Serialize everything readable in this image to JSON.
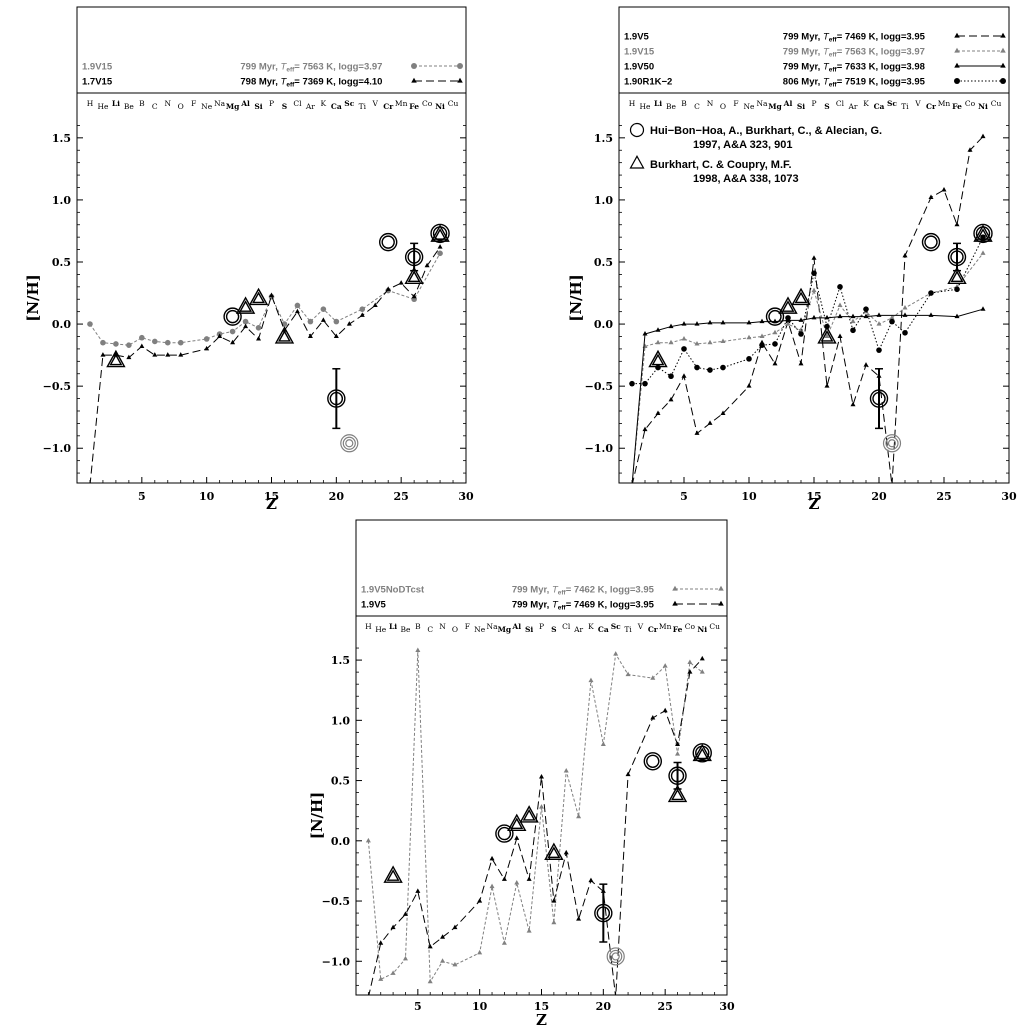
{
  "chart_data": [
    {
      "type": "line",
      "xlabel": "Z",
      "ylabel": "[N/H]",
      "xlim": [
        0,
        30
      ],
      "ylim": [
        -1.28,
        1.7
      ],
      "xticks": [
        5,
        10,
        15,
        20,
        25,
        30
      ],
      "yticks": [
        -1.0,
        -0.5,
        0.0,
        0.5,
        1.0,
        1.5
      ],
      "ytick_labels": [
        "−1.0",
        "−0.5",
        "0.0",
        "0.5",
        "1.0",
        "1.5"
      ],
      "legend": [
        {
          "name": "1.9V15",
          "desc_pre": "799 Myr, ",
          "teff_sym": "T",
          "teff_sub": "eff",
          "desc_post": "= 7563 K, logg=3.97",
          "color": "#808080",
          "style": "dotted-circle"
        },
        {
          "name": "1.7V15",
          "desc_pre": "798 Myr, ",
          "teff_sym": "T",
          "teff_sub": "eff",
          "desc_post": "= 7369 K, logg=4.10",
          "color": "#000000",
          "style": "dashed-triangle"
        }
      ],
      "series": [
        {
          "name": "1.9V15",
          "color": "#808080",
          "marker": "circle",
          "dash": "3,2",
          "x": [
            1,
            2,
            3,
            4,
            5,
            6,
            7,
            8,
            10,
            11,
            12,
            13,
            14,
            15,
            16,
            17,
            18,
            19,
            20,
            22,
            24,
            26,
            28
          ],
          "y": [
            0.0,
            -0.15,
            -0.16,
            -0.17,
            -0.11,
            -0.14,
            -0.15,
            -0.15,
            -0.12,
            -0.08,
            -0.06,
            0.02,
            -0.03,
            0.22,
            0.0,
            0.15,
            0.02,
            0.12,
            0.02,
            0.12,
            0.27,
            0.2,
            0.57
          ]
        },
        {
          "name": "1.7V15",
          "color": "#000000",
          "marker": "triangle",
          "dash": "8,4",
          "x": [
            1,
            2,
            3,
            4,
            5,
            6,
            7,
            8,
            10,
            11,
            12,
            13,
            14,
            15,
            16,
            17,
            18,
            19,
            20,
            21,
            22,
            23,
            24,
            25,
            26,
            27,
            28
          ],
          "y": [
            -1.3,
            -0.25,
            -0.25,
            -0.27,
            -0.18,
            -0.25,
            -0.25,
            -0.25,
            -0.2,
            -0.1,
            -0.15,
            -0.02,
            -0.12,
            0.23,
            -0.05,
            0.1,
            -0.1,
            0.03,
            -0.1,
            0.0,
            0.07,
            0.15,
            0.28,
            0.33,
            0.22,
            0.47,
            0.62
          ]
        }
      ],
      "references": {
        "circles": [
          {
            "x": 12,
            "y": 0.06
          },
          {
            "x": 24,
            "y": 0.66
          }
        ],
        "circles_err": [
          {
            "x": 20,
            "y": -0.6,
            "err": 0.24
          },
          {
            "x": 26,
            "y": 0.54,
            "err": 0.11
          }
        ],
        "triangles": [
          {
            "x": 3,
            "y": -0.3
          },
          {
            "x": 13,
            "y": 0.13
          },
          {
            "x": 14,
            "y": 0.2
          },
          {
            "x": 16,
            "y": -0.11
          },
          {
            "x": 26,
            "y": 0.37
          },
          {
            "x": 28,
            "y": 0.71
          }
        ],
        "double_circles": [
          {
            "x": 28,
            "y": 0.73
          }
        ],
        "triple_circles": [
          {
            "x": 21,
            "y": -0.96
          }
        ]
      },
      "ref_text": []
    },
    {
      "type": "line",
      "xlabel": "Z",
      "ylabel": "[N/H]",
      "xlim": [
        0,
        30
      ],
      "ylim": [
        -1.28,
        1.7
      ],
      "xticks": [
        5,
        10,
        15,
        20,
        25,
        30
      ],
      "yticks": [
        -1.0,
        -0.5,
        0.0,
        0.5,
        1.0,
        1.5
      ],
      "ytick_labels": [
        "−1.0",
        "−0.5",
        "0.0",
        "0.5",
        "1.0",
        "1.5"
      ],
      "legend": [
        {
          "name": "1.9V5",
          "desc_pre": "799 Myr, ",
          "teff_sym": "T",
          "teff_sub": "eff",
          "desc_post": "= 7469 K, logg=3.95",
          "color": "#000000",
          "style": "dashed-triangle"
        },
        {
          "name": "1.9V15",
          "desc_pre": "799 Myr, ",
          "teff_sym": "T",
          "teff_sub": "eff",
          "desc_post": "= 7563 K, logg=3.97",
          "color": "#808080",
          "style": "dotted-triangle"
        },
        {
          "name": "1.9V50",
          "desc_pre": "799 Myr, ",
          "teff_sym": "T",
          "teff_sub": "eff",
          "desc_post": "= 7633 K, logg=3.98",
          "color": "#000000",
          "style": "solid-triangle"
        },
        {
          "name": "1.90R1K−2",
          "desc_pre": "806 Myr, ",
          "teff_sym": "T",
          "teff_sub": "eff",
          "desc_post": "= 7519 K, logg=3.95",
          "color": "#000000",
          "style": "dotted-circle"
        }
      ],
      "series": [
        {
          "name": "1.9V5",
          "color": "#000000",
          "marker": "triangle",
          "dash": "8,4",
          "x": [
            1,
            2,
            3,
            4,
            5,
            6,
            7,
            8,
            10,
            11,
            12,
            13,
            14,
            15,
            16,
            17,
            18,
            19,
            20,
            21,
            22,
            24,
            25,
            26,
            27,
            28
          ],
          "y": [
            -1.3,
            -0.85,
            -0.72,
            -0.61,
            -0.42,
            -0.88,
            -0.8,
            -0.72,
            -0.5,
            -0.15,
            -0.32,
            0.02,
            -0.32,
            0.53,
            -0.5,
            -0.1,
            -0.65,
            -0.33,
            -0.42,
            -1.3,
            0.55,
            1.02,
            1.08,
            0.8,
            1.4,
            1.51
          ]
        },
        {
          "name": "1.9V15",
          "color": "#808080",
          "marker": "triangle",
          "dash": "3,2",
          "x": [
            1,
            2,
            3,
            4,
            5,
            6,
            7,
            8,
            10,
            11,
            12,
            13,
            14,
            15,
            16,
            17,
            18,
            19,
            20,
            21,
            22,
            24,
            26,
            28
          ],
          "y": [
            -1.3,
            -0.18,
            -0.15,
            -0.15,
            -0.12,
            -0.16,
            -0.15,
            -0.14,
            -0.11,
            -0.1,
            -0.07,
            0.0,
            -0.05,
            0.27,
            -0.1,
            0.15,
            0.02,
            0.1,
            0.0,
            0.05,
            0.13,
            0.25,
            0.3,
            0.57
          ]
        },
        {
          "name": "1.9V50",
          "color": "#000000",
          "marker": "triangle",
          "dash": "",
          "x": [
            1,
            2,
            3,
            4,
            5,
            6,
            7,
            8,
            10,
            11,
            12,
            13,
            14,
            15,
            16,
            17,
            18,
            19,
            20,
            22,
            24,
            26,
            28
          ],
          "y": [
            -1.3,
            -0.08,
            -0.05,
            -0.02,
            0.0,
            0.0,
            0.01,
            0.01,
            0.01,
            0.02,
            0.02,
            0.03,
            0.03,
            0.05,
            0.05,
            0.06,
            0.06,
            0.06,
            0.07,
            0.07,
            0.07,
            0.06,
            0.12
          ]
        },
        {
          "name": "1.90R1K−2",
          "color": "#000000",
          "marker": "circle",
          "dash": "1.5,2",
          "x": [
            1,
            2,
            3,
            4,
            5,
            6,
            7,
            8,
            10,
            11,
            12,
            13,
            14,
            15,
            16,
            17,
            18,
            19,
            20,
            21,
            22,
            24,
            26,
            28
          ],
          "y": [
            -0.48,
            -0.48,
            -0.35,
            -0.42,
            -0.2,
            -0.35,
            -0.37,
            -0.35,
            -0.28,
            -0.17,
            -0.16,
            0.05,
            -0.08,
            0.41,
            -0.02,
            0.3,
            -0.05,
            0.12,
            -0.21,
            0.02,
            -0.07,
            0.25,
            0.28,
            0.7
          ]
        }
      ],
      "references": {
        "circles": [
          {
            "x": 12,
            "y": 0.06
          },
          {
            "x": 24,
            "y": 0.66
          }
        ],
        "circles_err": [
          {
            "x": 20,
            "y": -0.6,
            "err": 0.24
          },
          {
            "x": 26,
            "y": 0.54,
            "err": 0.11
          }
        ],
        "triangles": [
          {
            "x": 3,
            "y": -0.3
          },
          {
            "x": 13,
            "y": 0.13
          },
          {
            "x": 14,
            "y": 0.2
          },
          {
            "x": 16,
            "y": -0.11
          },
          {
            "x": 26,
            "y": 0.37
          },
          {
            "x": 28,
            "y": 0.71
          }
        ],
        "double_circles": [
          {
            "x": 28,
            "y": 0.73
          }
        ],
        "triple_circles": [
          {
            "x": 21,
            "y": -0.96
          }
        ]
      },
      "ref_text": [
        {
          "symbol": "circle",
          "line1": "Hui−Bon−Hoa, A., Burkhart, C., & Alecian, G.",
          "line2": "1997, A&A 323, 901"
        },
        {
          "symbol": "triangle",
          "line1": "Burkhart, C. & Coupry, M.F.",
          "line2": "1998, A&A 338, 1073"
        }
      ]
    },
    {
      "type": "line",
      "xlabel": "Z",
      "ylabel": "[N/H]",
      "xlim": [
        0,
        30
      ],
      "ylim": [
        -1.28,
        1.7
      ],
      "xticks": [
        5,
        10,
        15,
        20,
        25,
        30
      ],
      "yticks": [
        -1.0,
        -0.5,
        0.0,
        0.5,
        1.0,
        1.5
      ],
      "ytick_labels": [
        "−1.0",
        "−0.5",
        "0.0",
        "0.5",
        "1.0",
        "1.5"
      ],
      "legend": [
        {
          "name": "1.9V5NoDTcst",
          "desc_pre": "799 Myr, ",
          "teff_sym": "T",
          "teff_sub": "eff",
          "desc_post": "= 7462 K, logg=3.95",
          "color": "#808080",
          "style": "dotted-triangle"
        },
        {
          "name": "1.9V5",
          "desc_pre": "799 Myr, ",
          "teff_sym": "T",
          "teff_sub": "eff",
          "desc_post": "= 7469 K, logg=3.95",
          "color": "#000000",
          "style": "dashed-triangle"
        }
      ],
      "series": [
        {
          "name": "1.9V5NoDTcst",
          "color": "#808080",
          "marker": "triangle",
          "dash": "3,2",
          "x": [
            1,
            2,
            3,
            4,
            5,
            6,
            7,
            8,
            10,
            11,
            12,
            13,
            14,
            15,
            16,
            17,
            18,
            19,
            20,
            21,
            22,
            24,
            25,
            26,
            27,
            28
          ],
          "y": [
            0.0,
            -1.15,
            -1.1,
            -0.98,
            1.58,
            -1.17,
            -1.0,
            -1.03,
            -0.93,
            -0.38,
            -0.85,
            -0.35,
            -0.75,
            0.28,
            -0.68,
            0.58,
            0.2,
            1.33,
            0.8,
            1.55,
            1.38,
            1.35,
            1.45,
            0.72,
            1.48,
            1.4
          ]
        },
        {
          "name": "1.9V5",
          "color": "#000000",
          "marker": "triangle",
          "dash": "8,4",
          "x": [
            1,
            2,
            3,
            4,
            5,
            6,
            7,
            8,
            10,
            11,
            12,
            13,
            14,
            15,
            16,
            17,
            18,
            19,
            20,
            21,
            22,
            24,
            25,
            26,
            27,
            28
          ],
          "y": [
            -1.3,
            -0.85,
            -0.72,
            -0.61,
            -0.42,
            -0.88,
            -0.8,
            -0.72,
            -0.5,
            -0.15,
            -0.32,
            0.02,
            -0.32,
            0.53,
            -0.5,
            -0.1,
            -0.65,
            -0.33,
            -0.42,
            -1.3,
            0.55,
            1.02,
            1.08,
            0.8,
            1.4,
            1.51
          ]
        }
      ],
      "references": {
        "circles": [
          {
            "x": 12,
            "y": 0.06
          },
          {
            "x": 24,
            "y": 0.66
          }
        ],
        "circles_err": [
          {
            "x": 20,
            "y": -0.6,
            "err": 0.24
          },
          {
            "x": 26,
            "y": 0.54,
            "err": 0.11
          }
        ],
        "triangles": [
          {
            "x": 3,
            "y": -0.3
          },
          {
            "x": 13,
            "y": 0.13
          },
          {
            "x": 14,
            "y": 0.2
          },
          {
            "x": 16,
            "y": -0.11
          },
          {
            "x": 26,
            "y": 0.37
          },
          {
            "x": 28,
            "y": 0.71
          }
        ],
        "double_circles": [
          {
            "x": 28,
            "y": 0.73
          }
        ],
        "triple_circles": [
          {
            "x": 21,
            "y": -0.96
          }
        ]
      },
      "ref_text": []
    }
  ],
  "elements": [
    {
      "z": 1,
      "sym": "H",
      "b": false
    },
    {
      "z": 2,
      "sym": "He",
      "b": false
    },
    {
      "z": 3,
      "sym": "Li",
      "b": true
    },
    {
      "z": 4,
      "sym": "Be",
      "b": false
    },
    {
      "z": 5,
      "sym": "B",
      "b": false
    },
    {
      "z": 6,
      "sym": "C",
      "b": false
    },
    {
      "z": 7,
      "sym": "N",
      "b": false
    },
    {
      "z": 8,
      "sym": "O",
      "b": false
    },
    {
      "z": 9,
      "sym": "F",
      "b": false
    },
    {
      "z": 10,
      "sym": "Ne",
      "b": false
    },
    {
      "z": 11,
      "sym": "Na",
      "b": false
    },
    {
      "z": 12,
      "sym": "Mg",
      "b": true
    },
    {
      "z": 13,
      "sym": "Al",
      "b": true
    },
    {
      "z": 14,
      "sym": "Si",
      "b": true
    },
    {
      "z": 15,
      "sym": "P",
      "b": false
    },
    {
      "z": 16,
      "sym": "S",
      "b": true
    },
    {
      "z": 17,
      "sym": "Cl",
      "b": false
    },
    {
      "z": 18,
      "sym": "Ar",
      "b": false
    },
    {
      "z": 19,
      "sym": "K",
      "b": false
    },
    {
      "z": 20,
      "sym": "Ca",
      "b": true
    },
    {
      "z": 21,
      "sym": "Sc",
      "b": true
    },
    {
      "z": 22,
      "sym": "Ti",
      "b": false
    },
    {
      "z": 23,
      "sym": "V",
      "b": false
    },
    {
      "z": 24,
      "sym": "Cr",
      "b": true
    },
    {
      "z": 25,
      "sym": "Mn",
      "b": false
    },
    {
      "z": 26,
      "sym": "Fe",
      "b": true
    },
    {
      "z": 27,
      "sym": "Co",
      "b": false
    },
    {
      "z": 28,
      "sym": "Ni",
      "b": true
    },
    {
      "z": 29,
      "sym": "Cu",
      "b": false
    }
  ]
}
